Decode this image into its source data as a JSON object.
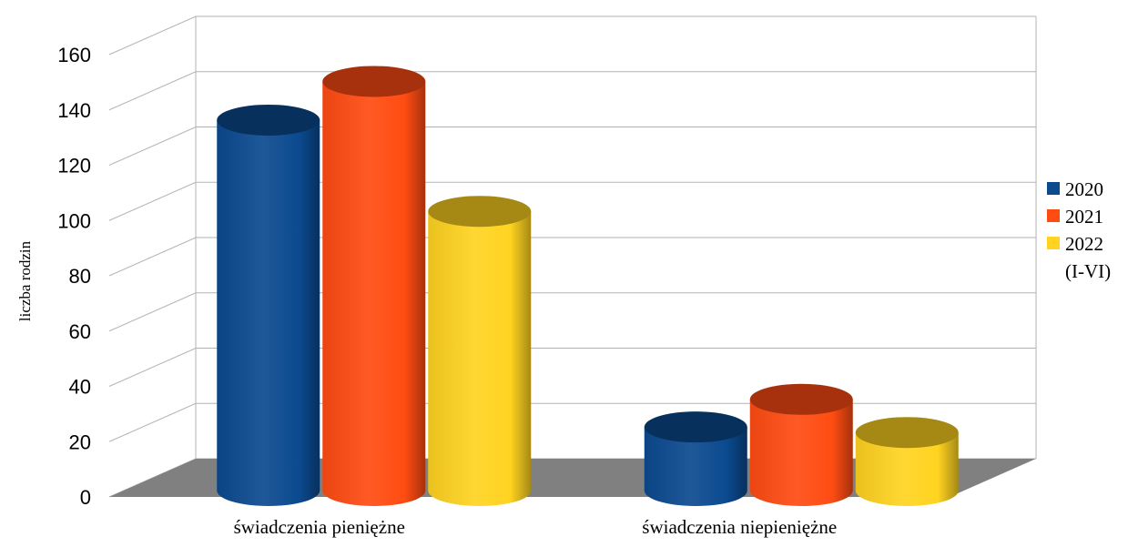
{
  "chart_data": {
    "type": "bar",
    "style": "3d-cylinder",
    "title": "",
    "xlabel": "",
    "ylabel": "liczba rodzin",
    "ylim": [
      0,
      160
    ],
    "yticks": [
      "0",
      "20",
      "40",
      "60",
      "80",
      "100",
      "120",
      "140",
      "160"
    ],
    "grid": true,
    "legend_position": "right",
    "categories": [
      "świadczenia pieniężne",
      "świadczenia niepieniężne"
    ],
    "series": [
      {
        "name": "2020",
        "values": [
          134,
          23
        ],
        "color": "#0B4A8F"
      },
      {
        "name": "2021",
        "values": [
          148,
          33
        ],
        "color": "#FF4C12"
      },
      {
        "name": "2022 (I-VI)",
        "values": [
          101,
          21
        ],
        "color": "#FFD320"
      }
    ],
    "legend_lines": [
      [
        "2020"
      ],
      [
        "2021"
      ],
      [
        "2022",
        "(I-VI)"
      ]
    ],
    "floor_color": "#808080"
  }
}
